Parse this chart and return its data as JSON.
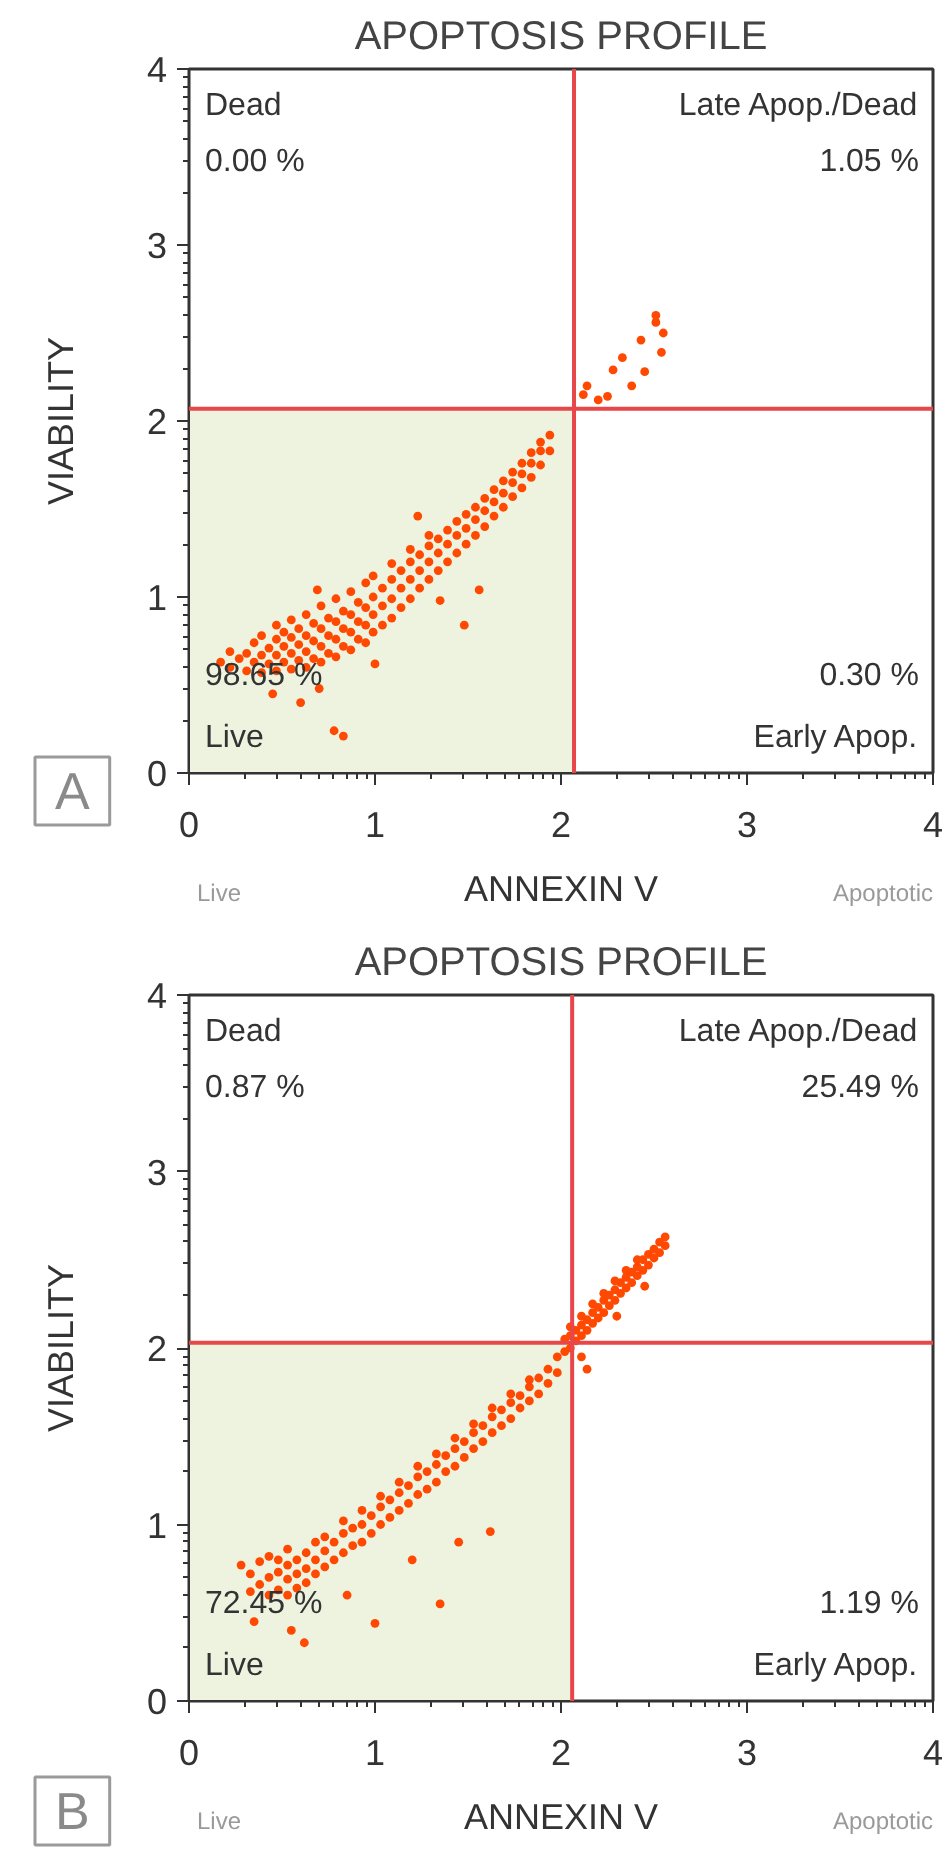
{
  "chart_data": [
    {
      "type": "scatter",
      "title": "APOPTOSIS PROFILE",
      "xlabel": "ANNEXIN V",
      "ylabel": "VIABILITY",
      "xlim": [
        0,
        4
      ],
      "ylim": [
        0,
        4
      ],
      "xticks": [
        0,
        1,
        2,
        3,
        4
      ],
      "yticks": [
        0,
        1,
        2,
        3,
        4
      ],
      "marker": "circle",
      "ref_lines": [
        {
          "axis": "x",
          "value": 2.07,
          "color": "#e8474a"
        },
        {
          "axis": "y",
          "value": 2.07,
          "color": "#e8474a"
        }
      ],
      "bands": [
        {
          "axis": "x",
          "from": 0,
          "to": 2.07,
          "color": "#edf3de"
        }
      ],
      "annotations": [
        "Dead",
        "0.00 %",
        "Late Apop./Dead",
        "1.05 %",
        "98.65 %",
        "Live",
        "0.30 %",
        "Early Apop.",
        "Live",
        "Apoptotic",
        "A"
      ],
      "series": [
        {
          "color": "#ff4800",
          "x": [
            0.17,
            0.22,
            0.22,
            0.27,
            0.31,
            0.31,
            0.35,
            0.35,
            0.39,
            0.39,
            0.39,
            0.43,
            0.43,
            0.47,
            0.47,
            0.47,
            0.47,
            0.51,
            0.51,
            0.51,
            0.55,
            0.55,
            0.55,
            0.55,
            0.59,
            0.59,
            0.59,
            0.63,
            0.63,
            0.63,
            0.63,
            0.67,
            0.67,
            0.67,
            0.71,
            0.71,
            0.71,
            0.71,
            0.75,
            0.75,
            0.75,
            0.79,
            0.79,
            0.79,
            0.79,
            0.83,
            0.83,
            0.83,
            0.87,
            0.87,
            0.87,
            0.87,
            0.91,
            0.91,
            0.91,
            0.95,
            0.95,
            0.95,
            0.95,
            0.99,
            0.99,
            0.99,
            0.99,
            1.04,
            1.04,
            1.04,
            1.09,
            1.09,
            1.09,
            1.09,
            1.14,
            1.14,
            1.14,
            1.19,
            1.19,
            1.19,
            1.19,
            1.24,
            1.24,
            1.24,
            1.29,
            1.29,
            1.29,
            1.29,
            1.34,
            1.34,
            1.34,
            1.39,
            1.39,
            1.39,
            1.44,
            1.44,
            1.44,
            1.49,
            1.49,
            1.49,
            1.54,
            1.54,
            1.54,
            1.59,
            1.59,
            1.59,
            1.64,
            1.64,
            1.64,
            1.69,
            1.69,
            1.69,
            1.74,
            1.74,
            1.74,
            1.79,
            1.79,
            1.79,
            1.84,
            1.84,
            1.84,
            1.89,
            1.89,
            1.89,
            1.94,
            1.94,
            0.83,
            0.78,
            1.48,
            1.56,
            1.23,
            0.6,
            0.45,
            1.0,
            1.35,
            0.7,
            0.69,
            2.12,
            2.14,
            2.2,
            2.25,
            2.28,
            2.33,
            2.43,
            2.45,
            2.51,
            2.54,
            2.51,
            2.55,
            2.38
          ],
          "values": [
            0.63,
            0.6,
            0.69,
            0.65,
            0.58,
            0.68,
            0.63,
            0.74,
            0.57,
            0.67,
            0.78,
            0.62,
            0.71,
            0.58,
            0.67,
            0.76,
            0.84,
            0.63,
            0.72,
            0.8,
            0.59,
            0.68,
            0.77,
            0.87,
            0.64,
            0.73,
            0.82,
            0.6,
            0.69,
            0.78,
            0.9,
            0.65,
            0.75,
            0.85,
            0.63,
            0.72,
            0.82,
            0.95,
            0.68,
            0.78,
            0.88,
            0.66,
            0.76,
            0.86,
            0.99,
            0.72,
            0.82,
            0.92,
            0.7,
            0.8,
            0.9,
            1.03,
            0.76,
            0.86,
            0.97,
            0.74,
            0.84,
            0.94,
            1.08,
            0.8,
            0.9,
            1.0,
            1.12,
            0.84,
            0.95,
            1.05,
            0.88,
            0.99,
            1.1,
            1.19,
            0.94,
            1.05,
            1.15,
            0.99,
            1.1,
            1.2,
            1.27,
            1.05,
            1.15,
            1.24,
            1.1,
            1.2,
            1.29,
            1.35,
            1.15,
            1.25,
            1.33,
            1.2,
            1.3,
            1.38,
            1.25,
            1.35,
            1.43,
            1.3,
            1.39,
            1.47,
            1.35,
            1.44,
            1.51,
            1.4,
            1.49,
            1.56,
            1.46,
            1.54,
            1.61,
            1.51,
            1.59,
            1.66,
            1.57,
            1.65,
            1.71,
            1.62,
            1.7,
            1.76,
            1.68,
            1.76,
            1.82,
            1.75,
            1.83,
            1.88,
            1.83,
            1.92,
            0.21,
            0.24,
            0.84,
            1.04,
            1.46,
            0.4,
            0.45,
            0.62,
            0.98,
            0.48,
            1.04,
            2.15,
            2.2,
            2.12,
            2.14,
            2.29,
            2.36,
            2.46,
            2.28,
            2.56,
            2.39,
            2.6,
            2.5,
            2.2
          ]
        }
      ]
    },
    {
      "type": "scatter",
      "title": "APOPTOSIS PROFILE",
      "xlabel": "ANNEXIN V",
      "ylabel": "VIABILITY",
      "xlim": [
        0,
        4
      ],
      "ylim": [
        0,
        4
      ],
      "xticks": [
        0,
        1,
        2,
        3,
        4
      ],
      "yticks": [
        0,
        1,
        2,
        3,
        4
      ],
      "marker": "circle",
      "ref_lines": [
        {
          "axis": "x",
          "value": 2.06,
          "color": "#e8474a"
        },
        {
          "axis": "y",
          "value": 2.03,
          "color": "#e8474a"
        }
      ],
      "bands": [
        {
          "axis": "x",
          "from": 0,
          "to": 2.06,
          "color": "#edf3de"
        }
      ],
      "annotations": [
        "Dead",
        "0.87 %",
        "Late Apop./Dead",
        "25.49 %",
        "72.45 %",
        "Live",
        "1.19 %",
        "Early Apop.",
        "Live",
        "Apoptotic",
        "B"
      ],
      "series": [
        {
          "color": "#ff4800",
          "x": [
            0.28,
            0.33,
            0.33,
            0.38,
            0.38,
            0.43,
            0.43,
            0.43,
            0.48,
            0.48,
            0.48,
            0.53,
            0.53,
            0.53,
            0.53,
            0.58,
            0.58,
            0.58,
            0.63,
            0.63,
            0.63,
            0.68,
            0.68,
            0.68,
            0.73,
            0.73,
            0.73,
            0.78,
            0.78,
            0.83,
            0.83,
            0.83,
            0.88,
            0.88,
            0.93,
            0.93,
            0.93,
            0.98,
            0.98,
            1.03,
            1.03,
            1.03,
            1.08,
            1.08,
            1.13,
            1.13,
            1.13,
            1.18,
            1.18,
            1.23,
            1.23,
            1.23,
            1.28,
            1.28,
            1.33,
            1.33,
            1.33,
            1.38,
            1.38,
            1.43,
            1.43,
            1.43,
            1.48,
            1.48,
            1.53,
            1.53,
            1.53,
            1.58,
            1.58,
            1.63,
            1.63,
            1.63,
            1.68,
            1.68,
            1.73,
            1.73,
            1.73,
            1.78,
            1.78,
            1.83,
            1.83,
            1.83,
            1.88,
            1.88,
            1.93,
            1.93,
            1.98,
            1.98,
            1.35,
            1.62,
            0.62,
            1.0,
            0.55,
            1.2,
            1.45,
            0.85,
            0.35,
            2.02,
            2.02,
            2.05,
            2.05,
            2.05,
            2.08,
            2.08,
            2.11,
            2.11,
            2.11,
            2.14,
            2.14,
            2.17,
            2.17,
            2.17,
            2.2,
            2.2,
            2.23,
            2.23,
            2.23,
            2.26,
            2.26,
            2.29,
            2.29,
            2.29,
            2.32,
            2.32,
            2.35,
            2.35,
            2.35,
            2.38,
            2.38,
            2.41,
            2.41,
            2.41,
            2.44,
            2.44,
            2.47,
            2.47,
            2.5,
            2.5,
            2.53,
            2.53,
            2.56,
            2.56,
            2.11,
            2.14,
            2.3,
            2.45
          ],
          "values": [
            0.77,
            0.62,
            0.72,
            0.66,
            0.79,
            0.6,
            0.7,
            0.82,
            0.63,
            0.73,
            0.8,
            0.6,
            0.69,
            0.77,
            0.86,
            0.64,
            0.72,
            0.8,
            0.67,
            0.75,
            0.84,
            0.72,
            0.8,
            0.9,
            0.76,
            0.85,
            0.93,
            0.8,
            0.9,
            0.84,
            0.95,
            1.02,
            0.88,
            0.98,
            0.9,
            1.0,
            1.08,
            0.95,
            1.05,
            1.0,
            1.1,
            1.16,
            1.04,
            1.14,
            1.08,
            1.18,
            1.24,
            1.12,
            1.22,
            1.17,
            1.27,
            1.33,
            1.2,
            1.3,
            1.24,
            1.34,
            1.4,
            1.3,
            1.39,
            1.33,
            1.43,
            1.49,
            1.38,
            1.47,
            1.43,
            1.52,
            1.57,
            1.47,
            1.56,
            1.52,
            1.61,
            1.66,
            1.56,
            1.65,
            1.6,
            1.69,
            1.74,
            1.66,
            1.73,
            1.7,
            1.78,
            1.82,
            1.74,
            1.83,
            1.8,
            1.88,
            1.86,
            1.95,
            0.55,
            0.96,
            0.33,
            0.44,
            0.4,
            0.8,
            0.9,
            0.6,
            0.45,
            1.98,
            2.05,
            2.0,
            2.07,
            2.12,
            2.04,
            2.1,
            2.07,
            2.13,
            2.18,
            2.1,
            2.16,
            2.14,
            2.2,
            2.25,
            2.17,
            2.23,
            2.2,
            2.27,
            2.31,
            2.24,
            2.3,
            2.27,
            2.33,
            2.38,
            2.31,
            2.37,
            2.34,
            2.4,
            2.44,
            2.37,
            2.43,
            2.41,
            2.46,
            2.5,
            2.44,
            2.5,
            2.47,
            2.53,
            2.51,
            2.56,
            2.54,
            2.6,
            2.58,
            2.63,
            1.95,
            1.88,
            2.18,
            2.35
          ]
        }
      ]
    }
  ]
}
